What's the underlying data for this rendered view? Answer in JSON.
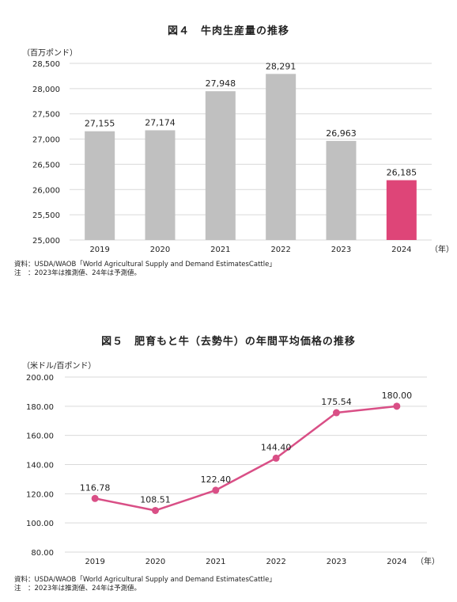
{
  "figure4": {
    "title": "図４　牛肉生産量の推移",
    "unit": "（百万ポンド）",
    "year_suffix": "（年）",
    "source": "資料：USDA/WAOB「World Agricultural Supply and Demand EstimatesCattle」",
    "note": "注　：2023年は推測値、24年は予測値。"
  },
  "figure5": {
    "title": "図５　肥育もと牛（去勢牛）の年間平均価格の推移",
    "unit": "（米ドル/百ポンド）",
    "year_suffix": "（年）",
    "source": "資料：USDA/WAOB「World Agricultural Supply and Demand EstimatesCattle」",
    "note": "注　：2023年は推測値、24年は予測値。"
  },
  "chart_data": [
    {
      "type": "bar",
      "title": "図４　牛肉生産量の推移",
      "ylabel": "（百万ポンド）",
      "xlabel": "（年）",
      "categories": [
        "2019",
        "2020",
        "2021",
        "2022",
        "2023",
        "2024"
      ],
      "values": [
        27155,
        27174,
        27948,
        28291,
        26963,
        26185
      ],
      "value_labels": [
        "27,155",
        "27,174",
        "27,948",
        "28,291",
        "26,963",
        "26,185"
      ],
      "ylim": [
        25000,
        28500
      ],
      "yticks": [
        25000,
        25500,
        26000,
        26500,
        27000,
        27500,
        28000,
        28500
      ],
      "ytick_labels": [
        "25,000",
        "25,500",
        "26,000",
        "26,500",
        "27,000",
        "27,500",
        "28,000",
        "28,500"
      ],
      "grid": true,
      "colors": {
        "default": "#c0c0c0",
        "highlight": "#de4578"
      },
      "highlight_index": 5
    },
    {
      "type": "line",
      "title": "図５　肥育もと牛（去勢牛）の年間平均価格の推移",
      "ylabel": "（米ドル/百ポンド）",
      "xlabel": "（年）",
      "categories": [
        "2019",
        "2020",
        "2021",
        "2022",
        "2023",
        "2024"
      ],
      "values": [
        116.78,
        108.51,
        122.4,
        144.4,
        175.54,
        180.0
      ],
      "value_labels": [
        "116.78",
        "108.51",
        "122.40",
        "144.40",
        "175.54",
        "180.00"
      ],
      "ylim": [
        80,
        200
      ],
      "yticks": [
        80,
        100,
        120,
        140,
        160,
        180,
        200
      ],
      "ytick_labels": [
        "80.00",
        "100.00",
        "120.00",
        "140.00",
        "160.00",
        "180.00",
        "200.00"
      ],
      "grid": true,
      "colors": {
        "line": "#d94f86",
        "marker": "#d94f86"
      }
    }
  ]
}
